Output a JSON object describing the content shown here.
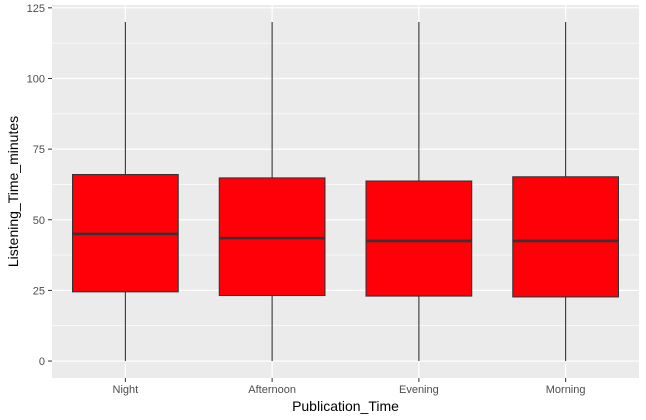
{
  "chart_data": {
    "type": "box",
    "xlabel": "Publication_Time",
    "ylabel": "Listening_Time_minutes",
    "categories": [
      "Night",
      "Afternoon",
      "Evening",
      "Morning"
    ],
    "boxes": [
      {
        "category": "Night",
        "min": 0,
        "q1": 24.5,
        "median": 45,
        "q3": 66,
        "max": 120
      },
      {
        "category": "Afternoon",
        "min": 0,
        "q1": 23.2,
        "median": 43.5,
        "q3": 64.8,
        "max": 120
      },
      {
        "category": "Evening",
        "min": 0,
        "q1": 23,
        "median": 42.5,
        "q3": 63.7,
        "max": 120
      },
      {
        "category": "Morning",
        "min": 0,
        "q1": 22.7,
        "median": 42.5,
        "q3": 65.2,
        "max": 120
      }
    ],
    "yticks": [
      0,
      25,
      50,
      75,
      100,
      125
    ],
    "ylim": [
      -6,
      126
    ],
    "grid": true,
    "fill_color": "#FF0008",
    "outline_color": "#333333",
    "panel_color": "#EBEBEB",
    "grid_color": "#FFFFFF"
  }
}
